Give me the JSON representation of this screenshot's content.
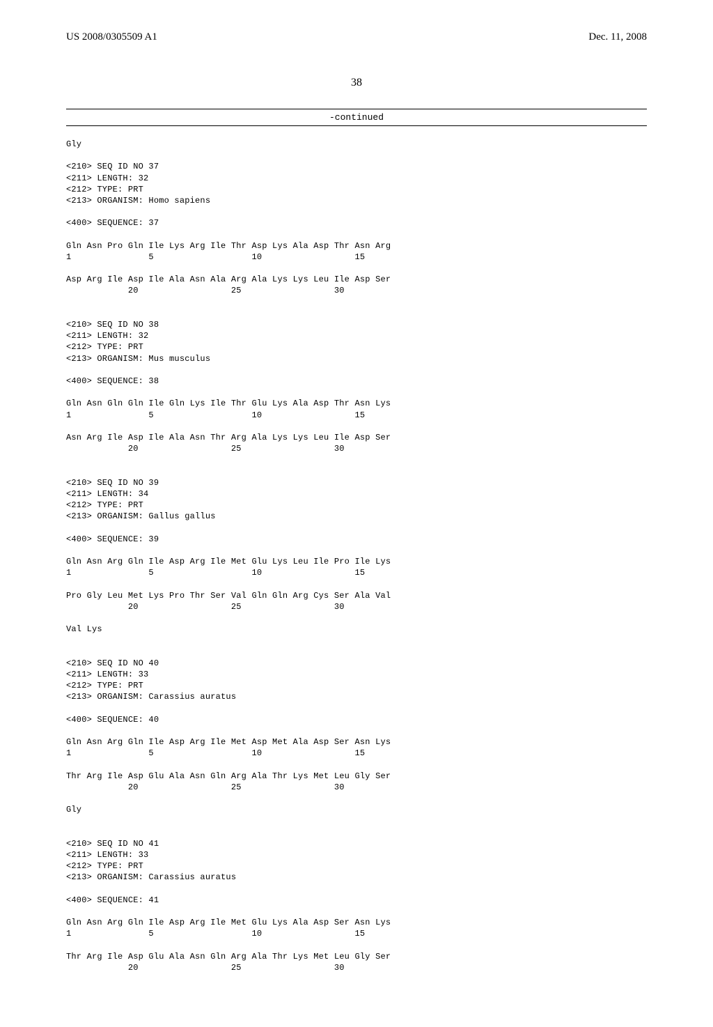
{
  "header": {
    "pub_number": "US 2008/0305509 A1",
    "pub_date": "Dec. 11, 2008"
  },
  "page_number": "38",
  "continued_label": "-continued",
  "tail": "Gly",
  "sequences": [
    {
      "id_line": "<210> SEQ ID NO 37",
      "length_line": "<211> LENGTH: 32",
      "type_line": "<212> TYPE: PRT",
      "organism_line": "<213> ORGANISM: Homo sapiens",
      "seq_line": "<400> SEQUENCE: 37",
      "rows": [
        {
          "aa": "Gln Asn Pro Gln Ile Lys Arg Ile Thr Asp Lys Ala Asp Thr Asn Arg",
          "nums": "1               5                   10                  15"
        },
        {
          "aa": "Asp Arg Ile Asp Ile Ala Asn Ala Arg Ala Lys Lys Leu Ile Asp Ser",
          "nums": "            20                  25                  30"
        }
      ],
      "trailing": ""
    },
    {
      "id_line": "<210> SEQ ID NO 38",
      "length_line": "<211> LENGTH: 32",
      "type_line": "<212> TYPE: PRT",
      "organism_line": "<213> ORGANISM: Mus musculus",
      "seq_line": "<400> SEQUENCE: 38",
      "rows": [
        {
          "aa": "Gln Asn Gln Gln Ile Gln Lys Ile Thr Glu Lys Ala Asp Thr Asn Lys",
          "nums": "1               5                   10                  15"
        },
        {
          "aa": "Asn Arg Ile Asp Ile Ala Asn Thr Arg Ala Lys Lys Leu Ile Asp Ser",
          "nums": "            20                  25                  30"
        }
      ],
      "trailing": ""
    },
    {
      "id_line": "<210> SEQ ID NO 39",
      "length_line": "<211> LENGTH: 34",
      "type_line": "<212> TYPE: PRT",
      "organism_line": "<213> ORGANISM: Gallus gallus",
      "seq_line": "<400> SEQUENCE: 39",
      "rows": [
        {
          "aa": "Gln Asn Arg Gln Ile Asp Arg Ile Met Glu Lys Leu Ile Pro Ile Lys",
          "nums": "1               5                   10                  15"
        },
        {
          "aa": "Pro Gly Leu Met Lys Pro Thr Ser Val Gln Gln Arg Cys Ser Ala Val",
          "nums": "            20                  25                  30"
        }
      ],
      "trailing": "Val Lys"
    },
    {
      "id_line": "<210> SEQ ID NO 40",
      "length_line": "<211> LENGTH: 33",
      "type_line": "<212> TYPE: PRT",
      "organism_line": "<213> ORGANISM: Carassius auratus",
      "seq_line": "<400> SEQUENCE: 40",
      "rows": [
        {
          "aa": "Gln Asn Arg Gln Ile Asp Arg Ile Met Asp Met Ala Asp Ser Asn Lys",
          "nums": "1               5                   10                  15"
        },
        {
          "aa": "Thr Arg Ile Asp Glu Ala Asn Gln Arg Ala Thr Lys Met Leu Gly Ser",
          "nums": "            20                  25                  30"
        }
      ],
      "trailing": "Gly"
    },
    {
      "id_line": "<210> SEQ ID NO 41",
      "length_line": "<211> LENGTH: 33",
      "type_line": "<212> TYPE: PRT",
      "organism_line": "<213> ORGANISM: Carassius auratus",
      "seq_line": "<400> SEQUENCE: 41",
      "rows": [
        {
          "aa": "Gln Asn Arg Gln Ile Asp Arg Ile Met Glu Lys Ala Asp Ser Asn Lys",
          "nums": "1               5                   10                  15"
        },
        {
          "aa": "Thr Arg Ile Asp Glu Ala Asn Gln Arg Ala Thr Lys Met Leu Gly Ser",
          "nums": "            20                  25                  30"
        }
      ],
      "trailing": ""
    }
  ]
}
